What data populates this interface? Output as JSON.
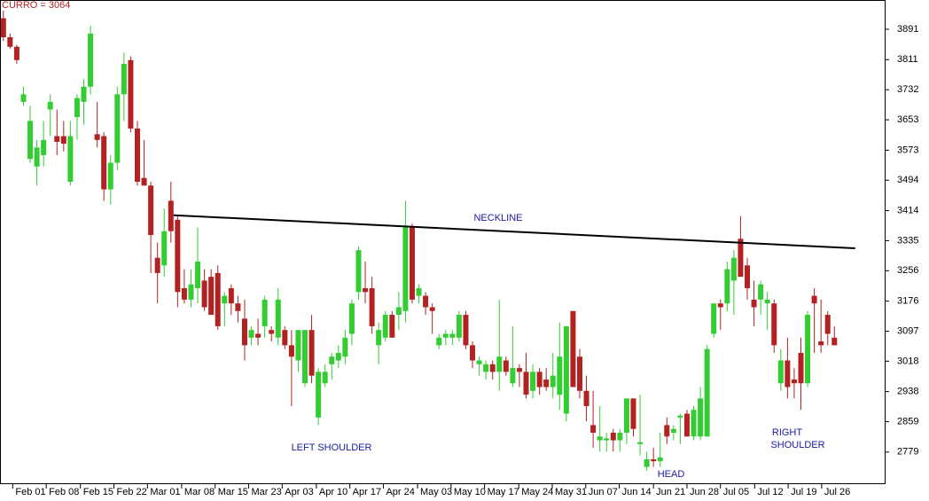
{
  "chart_data": {
    "type": "candlestick",
    "title": "CURRO = 3064",
    "up_color": "#33cc33",
    "down_color": "#b22222",
    "neckline_color": "#000000",
    "open": [
      3920,
      3870,
      3845,
      3700,
      3550,
      3530,
      3560,
      3680,
      3610,
      3610,
      3490,
      3660,
      3700,
      3740,
      3615,
      3610,
      3470,
      3540,
      3720,
      3810,
      3630,
      3500,
      3480,
      3290,
      3270,
      3440,
      3390,
      3210,
      3180,
      3210,
      3230,
      3240,
      3250,
      3170,
      3210,
      3170,
      3130,
      3080,
      3090,
      3110,
      3100,
      3080,
      3100,
      3060,
      3020,
      2960,
      3100,
      2870,
      2960,
      3010,
      3020,
      3030,
      3090,
      3200,
      3210,
      3210,
      3060,
      3080,
      3140,
      3140,
      3150,
      3370,
      3190,
      3190,
      3160,
      3060,
      3080,
      3080,
      3080,
      3140,
      3060,
      3010,
      2990,
      3010,
      2990,
      3020,
      2960,
      3000,
      2990,
      2940,
      2990,
      2970,
      2950,
      2930,
      2880,
      3150,
      3030,
      2940,
      2850,
      2810,
      2810,
      2830,
      2810,
      2830,
      2920,
      2800,
      2740,
      2760,
      2755,
      2850,
      2830,
      2870,
      2880,
      2820,
      2820,
      2820,
      3090,
      3170,
      3170,
      3230,
      3340,
      3270,
      3180,
      3180,
      3170,
      3170,
      2960,
      3020,
      2970,
      3040,
      2960,
      3190,
      3070,
      3140,
      3080
    ],
    "high": [
      3940,
      3880,
      3850,
      3740,
      3690,
      3600,
      3650,
      3720,
      3680,
      3650,
      3650,
      3720,
      3760,
      3900,
      3700,
      3620,
      3560,
      3740,
      3830,
      3820,
      3650,
      3600,
      3490,
      3330,
      3420,
      3490,
      3400,
      3260,
      3260,
      3370,
      3260,
      3260,
      3270,
      3200,
      3220,
      3190,
      3180,
      3110,
      3130,
      3190,
      3110,
      3210,
      3110,
      3100,
      3100,
      3100,
      3140,
      3000,
      3010,
      3040,
      3060,
      3100,
      3180,
      3320,
      3280,
      3240,
      3120,
      3150,
      3150,
      3200,
      3440,
      3380,
      3220,
      3200,
      3170,
      3090,
      3100,
      3100,
      3150,
      3150,
      3070,
      3030,
      3020,
      3020,
      3180,
      3030,
      3110,
      3010,
      3040,
      3010,
      3000,
      3000,
      3040,
      3120,
      3110,
      3150,
      3050,
      2980,
      2940,
      2900,
      2830,
      2840,
      2840,
      2920,
      2920,
      2930,
      2780,
      2790,
      2830,
      2870,
      2850,
      2880,
      2890,
      2900,
      2950,
      3060,
      3170,
      3180,
      3280,
      3310,
      3400,
      3290,
      3230,
      3230,
      3200,
      3180,
      3050,
      3080,
      3000,
      3080,
      3150,
      3210,
      3180,
      3150,
      3110
    ],
    "low": [
      3860,
      3840,
      3800,
      3690,
      3540,
      3480,
      3530,
      3610,
      3560,
      3570,
      3480,
      3600,
      3640,
      3720,
      3580,
      3440,
      3430,
      3520,
      3650,
      3620,
      3480,
      3480,
      3250,
      3170,
      3240,
      3330,
      3160,
      3170,
      3160,
      3170,
      3150,
      3140,
      3100,
      3110,
      3140,
      3120,
      3020,
      3060,
      3060,
      3080,
      3070,
      3060,
      3050,
      2900,
      2990,
      2950,
      2960,
      2850,
      2950,
      2970,
      3000,
      3010,
      3060,
      3180,
      3170,
      3090,
      3010,
      3070,
      3080,
      3100,
      3120,
      3170,
      3170,
      3140,
      3090,
      3050,
      3060,
      3060,
      3070,
      3050,
      3000,
      2980,
      2970,
      2970,
      2940,
      2980,
      2950,
      2950,
      2920,
      2920,
      2930,
      2940,
      2920,
      2890,
      2860,
      2950,
      2920,
      2860,
      2790,
      2780,
      2780,
      2780,
      2780,
      2800,
      2820,
      2770,
      2730,
      2740,
      2740,
      2800,
      2810,
      2800,
      2820,
      2810,
      2810,
      2820,
      3080,
      3100,
      3150,
      3140,
      3240,
      3180,
      3110,
      3140,
      3100,
      3040,
      2940,
      2920,
      2920,
      2890,
      2950,
      3040,
      3040,
      3060,
      3060
    ],
    "close": [
      3870,
      3845,
      3810,
      3720,
      3650,
      3580,
      3600,
      3700,
      3595,
      3590,
      3610,
      3710,
      3740,
      3880,
      3600,
      3470,
      3540,
      3720,
      3800,
      3630,
      3490,
      3480,
      3350,
      3250,
      3360,
      3360,
      3200,
      3180,
      3220,
      3280,
      3160,
      3140,
      3110,
      3190,
      3170,
      3150,
      3060,
      3100,
      3080,
      3180,
      3090,
      3180,
      3060,
      3030,
      3100,
      3100,
      2980,
      2990,
      2990,
      3030,
      3040,
      3080,
      3170,
      3310,
      3200,
      3110,
      3100,
      3140,
      3080,
      3160,
      3370,
      3180,
      3210,
      3160,
      3150,
      3080,
      3090,
      3090,
      3140,
      3060,
      3020,
      3020,
      3010,
      2990,
      3030,
      2990,
      3000,
      2990,
      2930,
      2990,
      2950,
      2950,
      2980,
      3030,
      3110,
      2950,
      2940,
      2900,
      2830,
      2820,
      2815,
      2810,
      2830,
      2920,
      2840,
      2805,
      2760,
      2755,
      2765,
      2820,
      2840,
      2875,
      2820,
      2890,
      2920,
      3050,
      3170,
      3160,
      3260,
      3290,
      3240,
      3210,
      3160,
      3220,
      3180,
      3060,
      3020,
      2950,
      2960,
      2960,
      3140,
      3170,
      3060,
      3090,
      3060
    ],
    "xlim": [
      -0.5,
      131.5
    ],
    "xticks": [
      {
        "value": 1.4,
        "label": "Feb 01"
      },
      {
        "value": 6.4,
        "label": "Feb 08"
      },
      {
        "value": 11.5,
        "label": "Feb 15"
      },
      {
        "value": 16.5,
        "label": "Feb 22"
      },
      {
        "value": 21.5,
        "label": "Mar 01"
      },
      {
        "value": 26.6,
        "label": "Mar 08"
      },
      {
        "value": 31.6,
        "label": "Mar 15"
      },
      {
        "value": 36.6,
        "label": "Mar 23"
      },
      {
        "value": 41.6,
        "label": "Apr 03"
      },
      {
        "value": 46.7,
        "label": "Apr 10"
      },
      {
        "value": 51.7,
        "label": "Apr 17"
      },
      {
        "value": 56.7,
        "label": "Apr 24"
      },
      {
        "value": 61.8,
        "label": "May 03"
      },
      {
        "value": 66.8,
        "label": "May 10"
      },
      {
        "value": 71.8,
        "label": "May 17"
      },
      {
        "value": 76.9,
        "label": "May 24"
      },
      {
        "value": 81.9,
        "label": "May 31"
      },
      {
        "value": 86.9,
        "label": "Jun 07"
      },
      {
        "value": 91.9,
        "label": "Jun 14"
      },
      {
        "value": 97.0,
        "label": "Jun 21"
      },
      {
        "value": 102.0,
        "label": "Jun 28"
      },
      {
        "value": 107.0,
        "label": "Jul 05"
      },
      {
        "value": 112.1,
        "label": "Jul 12"
      },
      {
        "value": 117.1,
        "label": "Jul 19"
      },
      {
        "value": 122.1,
        "label": "Jul 26"
      }
    ],
    "ylim": [
      2697,
      3968
    ],
    "yticks": [
      3891,
      3811,
      3732,
      3653,
      3573,
      3494,
      3414,
      3335,
      3256,
      3176,
      3097,
      3018,
      2938,
      2859,
      2779
    ],
    "neckline": {
      "x": [
        25.4,
        127.1
      ],
      "values": [
        3402,
        3315
      ]
    },
    "annotations": [
      "NECKLINE",
      "LEFT SHOULDER",
      "HEAD",
      "RIGHT",
      "SHOULDER"
    ]
  }
}
